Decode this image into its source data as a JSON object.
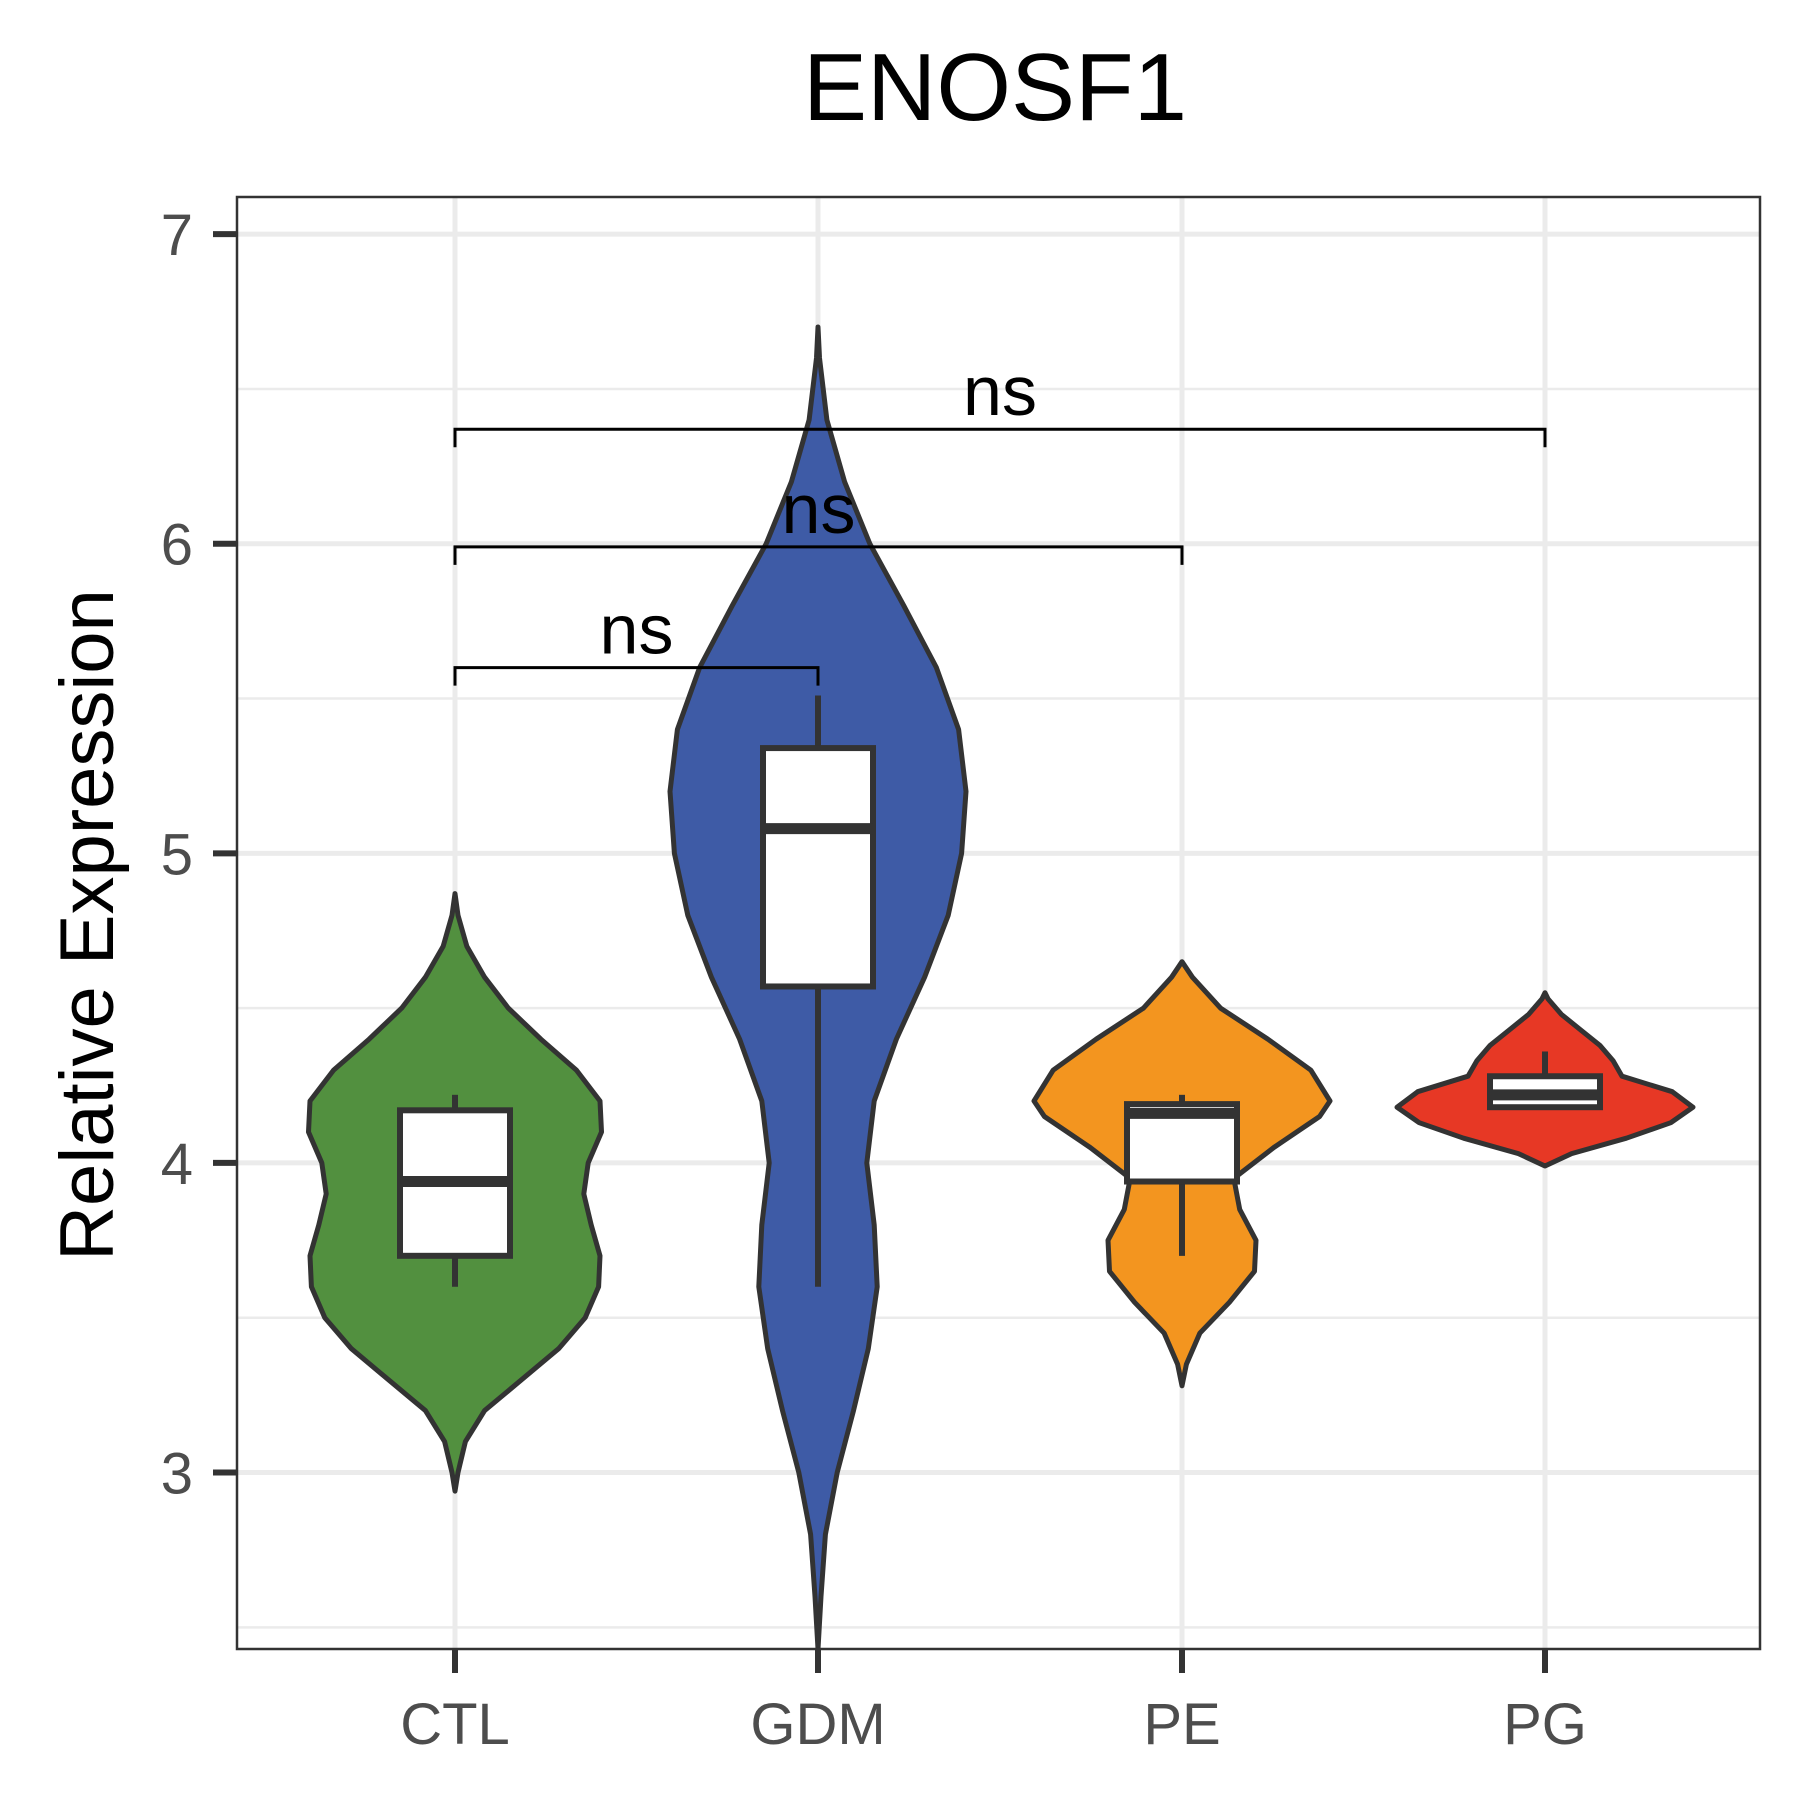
{
  "chart_data": {
    "type": "violin",
    "title": "ENOSF1",
    "xlabel": "",
    "ylabel": "Relative Expression",
    "ylim": [
      2.43,
      7.12
    ],
    "y_ticks": [
      "3",
      "4",
      "5",
      "6",
      "7"
    ],
    "grid": true,
    "categories": [
      "CTL",
      "GDM",
      "PE",
      "PG"
    ],
    "groups": [
      {
        "name": "CTL",
        "color": "#52903f",
        "box": {
          "min": 3.6,
          "q1": 3.7,
          "median": 3.94,
          "q3": 4.17,
          "max": 4.22
        },
        "density": [
          [
            2.94,
            0.0
          ],
          [
            3.0,
            0.02
          ],
          [
            3.1,
            0.07
          ],
          [
            3.2,
            0.2
          ],
          [
            3.3,
            0.45
          ],
          [
            3.4,
            0.7
          ],
          [
            3.5,
            0.88
          ],
          [
            3.6,
            0.97
          ],
          [
            3.7,
            0.98
          ],
          [
            3.8,
            0.92
          ],
          [
            3.9,
            0.87
          ],
          [
            4.0,
            0.9
          ],
          [
            4.1,
            0.99
          ],
          [
            4.2,
            0.98
          ],
          [
            4.3,
            0.82
          ],
          [
            4.4,
            0.58
          ],
          [
            4.5,
            0.36
          ],
          [
            4.6,
            0.2
          ],
          [
            4.7,
            0.08
          ],
          [
            4.8,
            0.02
          ],
          [
            4.87,
            0.0
          ]
        ]
      },
      {
        "name": "GDM",
        "color": "#3e5ba6",
        "box": {
          "min": 3.6,
          "q1": 4.57,
          "median": 5.08,
          "q3": 5.34,
          "max": 5.51
        },
        "density": [
          [
            2.43,
            0.0
          ],
          [
            2.6,
            0.02
          ],
          [
            2.8,
            0.05
          ],
          [
            3.0,
            0.13
          ],
          [
            3.2,
            0.24
          ],
          [
            3.4,
            0.34
          ],
          [
            3.6,
            0.4
          ],
          [
            3.8,
            0.38
          ],
          [
            4.0,
            0.33
          ],
          [
            4.2,
            0.38
          ],
          [
            4.4,
            0.53
          ],
          [
            4.6,
            0.72
          ],
          [
            4.8,
            0.88
          ],
          [
            5.0,
            0.97
          ],
          [
            5.2,
            1.0
          ],
          [
            5.4,
            0.95
          ],
          [
            5.6,
            0.8
          ],
          [
            5.8,
            0.58
          ],
          [
            6.0,
            0.35
          ],
          [
            6.2,
            0.18
          ],
          [
            6.4,
            0.06
          ],
          [
            6.6,
            0.01
          ],
          [
            6.7,
            0.0
          ]
        ]
      },
      {
        "name": "PE",
        "color": "#f3951f",
        "box": {
          "min": 3.7,
          "q1": 3.94,
          "median": 4.16,
          "q3": 4.19,
          "max": 4.22
        },
        "density": [
          [
            3.28,
            0.0
          ],
          [
            3.35,
            0.03
          ],
          [
            3.45,
            0.12
          ],
          [
            3.55,
            0.32
          ],
          [
            3.65,
            0.49
          ],
          [
            3.75,
            0.5
          ],
          [
            3.85,
            0.39
          ],
          [
            3.95,
            0.35
          ],
          [
            4.05,
            0.62
          ],
          [
            4.15,
            0.93
          ],
          [
            4.2,
            1.0
          ],
          [
            4.3,
            0.87
          ],
          [
            4.4,
            0.58
          ],
          [
            4.5,
            0.26
          ],
          [
            4.6,
            0.07
          ],
          [
            4.65,
            0.0
          ]
        ]
      },
      {
        "name": "PG",
        "color": "#e73825",
        "box": {
          "min": 4.18,
          "q1": 4.18,
          "median": 4.22,
          "q3": 4.28,
          "max": 4.36
        },
        "density": [
          [
            3.99,
            0.0
          ],
          [
            4.03,
            0.18
          ],
          [
            4.08,
            0.55
          ],
          [
            4.13,
            0.85
          ],
          [
            4.18,
            1.0
          ],
          [
            4.23,
            0.86
          ],
          [
            4.28,
            0.52
          ],
          [
            4.33,
            0.46
          ],
          [
            4.38,
            0.37
          ],
          [
            4.43,
            0.24
          ],
          [
            4.48,
            0.11
          ],
          [
            4.53,
            0.02
          ],
          [
            4.55,
            0.0
          ]
        ]
      }
    ],
    "comparisons": [
      {
        "from": "CTL",
        "to": "GDM",
        "label": "ns",
        "y": 5.6
      },
      {
        "from": "CTL",
        "to": "PE",
        "label": "ns",
        "y": 5.99
      },
      {
        "from": "CTL",
        "to": "PG",
        "label": "ns",
        "y": 6.37
      }
    ]
  }
}
